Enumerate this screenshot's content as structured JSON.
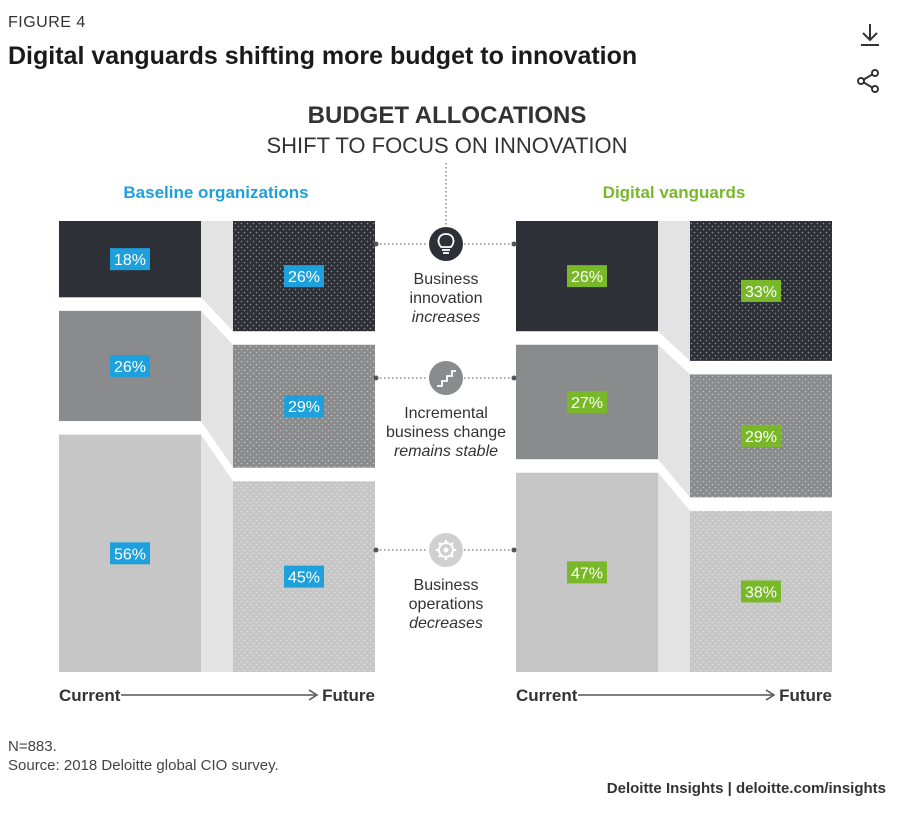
{
  "figure_label": "FIGURE 4",
  "title": "Digital vanguards shifting more budget to innovation",
  "toolbar": {
    "download_icon": "download-icon",
    "share_icon": "share-icon"
  },
  "chart_data": {
    "type": "stacked-bar-comparison",
    "title": "BUDGET ALLOCATIONS",
    "subtitle": "SHIFT TO FOCUS ON INNOVATION",
    "x_axis": {
      "start": "Current",
      "end": "Future"
    },
    "categories": [
      {
        "name": "Business innovation",
        "line1": "Business",
        "line2": "innovation",
        "trend": "increases",
        "icon": "lightbulb-icon"
      },
      {
        "name": "Incremental business change",
        "line1": "Incremental",
        "line2": "business change",
        "trend": "remains stable",
        "icon": "stairs-icon"
      },
      {
        "name": "Business operations",
        "line1": "Business",
        "line2": "operations",
        "trend": "decreases",
        "icon": "gear-icon"
      }
    ],
    "groups": [
      {
        "name": "Baseline organizations",
        "color": "#1ea0dc",
        "current": [
          18,
          26,
          56
        ],
        "future": [
          26,
          29,
          45
        ],
        "current_labels": [
          "18%",
          "26%",
          "56%"
        ],
        "future_labels": [
          "26%",
          "29%",
          "45%"
        ]
      },
      {
        "name": "Digital vanguards",
        "color": "#78b829",
        "current": [
          26,
          27,
          47
        ],
        "future": [
          33,
          29,
          38
        ],
        "current_labels": [
          "26%",
          "27%",
          "47%"
        ],
        "future_labels": [
          "33%",
          "29%",
          "38%"
        ]
      }
    ],
    "segment_colors": [
      "#2e3038",
      "#8a8b8d",
      "#c6c6c6"
    ]
  },
  "footnote_n": "N=883.",
  "footnote_source": "Source: 2018 Deloitte global CIO survey.",
  "credit": "Deloitte Insights | deloitte.com/insights"
}
